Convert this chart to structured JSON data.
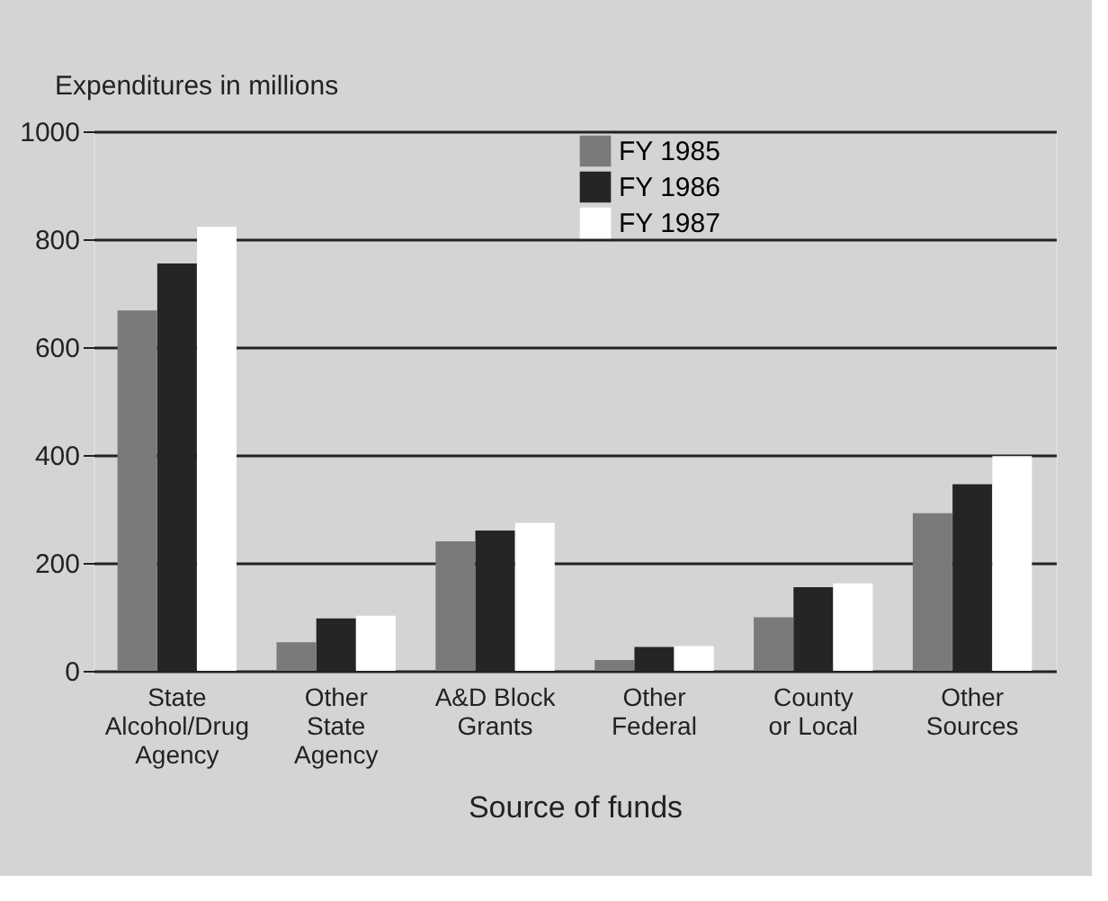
{
  "chart_data": {
    "type": "bar",
    "xlabel": "Source of funds",
    "ylabel": "Expenditures in millions",
    "categories": [
      "State\nAlcohol/Drug\nAgency",
      "Other\nState\nAgency",
      "A&D Block\nGrants",
      "Other\nFederal",
      "County\nor Local",
      "Other\nSources"
    ],
    "series": [
      {
        "name": "FY 1985",
        "color": "#7a7a7a",
        "values": [
          668,
          53,
          240,
          20,
          99,
          292
        ]
      },
      {
        "name": "FY 1986",
        "color": "#252525",
        "values": [
          755,
          97,
          260,
          44,
          155,
          346
        ]
      },
      {
        "name": "FY 1987",
        "color": "#ffffff",
        "values": [
          823,
          102,
          274,
          46,
          162,
          398
        ]
      }
    ],
    "ylim": [
      0,
      1000
    ],
    "yticks": [
      0,
      200,
      400,
      600,
      800,
      1000
    ],
    "grid": "y",
    "legend": "top"
  }
}
